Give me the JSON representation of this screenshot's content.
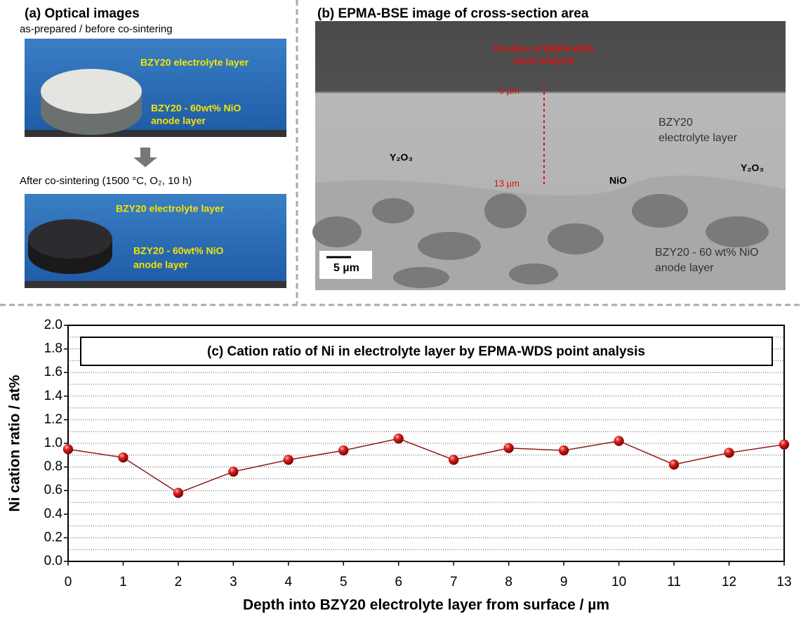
{
  "panel_a": {
    "title": "(a) Optical images",
    "caption_before": "as-prepared / before co-sintering",
    "before_labels": [
      "BZY20 electrolyte layer",
      "BZY20 - 60wt% NiO",
      "anode layer"
    ],
    "caption_after": "After co-sintering (1500 °C, O₂, 10 h)",
    "after_labels": [
      "BZY20 electrolyte layer",
      "BZY20 - 60wt% NiO",
      "anode layer"
    ]
  },
  "panel_b": {
    "title": "(b) EPMA-BSE image of cross-section area",
    "position_label": [
      "Position of EMPA-WDS",
      "point analysis"
    ],
    "depth_start": "0 µm",
    "depth_end": "13 µm",
    "electrolyte_label": [
      "BZY20",
      "electrolyte layer"
    ],
    "phase_labels": [
      "Y₂O₃",
      "NiO",
      "Y₂O₃"
    ],
    "anode_label": [
      "BZY20 - 60 wt% NiO",
      "anode layer"
    ],
    "scale_bar": "5 µm"
  },
  "chart_data": {
    "type": "line",
    "title": "(c) Cation ratio of Ni in electrolyte layer by EPMA-WDS point analysis",
    "x_label": "Depth into BZY20 electrolyte layer from surface / µm",
    "y_label": "Ni cation ratio / at%",
    "x": [
      0,
      1,
      2,
      3,
      4,
      5,
      6,
      7,
      8,
      9,
      10,
      11,
      12,
      13
    ],
    "values": [
      0.95,
      0.88,
      0.58,
      0.76,
      0.86,
      0.94,
      1.04,
      0.86,
      0.96,
      0.94,
      1.02,
      0.82,
      0.92,
      0.99
    ],
    "color": "#b01818",
    "line_color": "#8b1a1a",
    "xlim": [
      0,
      13
    ],
    "xticks": [
      0,
      1,
      2,
      3,
      4,
      5,
      6,
      7,
      8,
      9,
      10,
      11,
      12,
      13
    ],
    "ylim": [
      0,
      2
    ],
    "yticks": [
      {
        "value": 0,
        "label": "0.0"
      },
      0.2,
      0.4,
      0.6,
      0.8,
      {
        "value": 1,
        "label": "1.0"
      },
      1.2,
      1.4,
      1.6,
      1.8,
      {
        "value": 2,
        "label": "2.0"
      }
    ],
    "grid": true
  }
}
